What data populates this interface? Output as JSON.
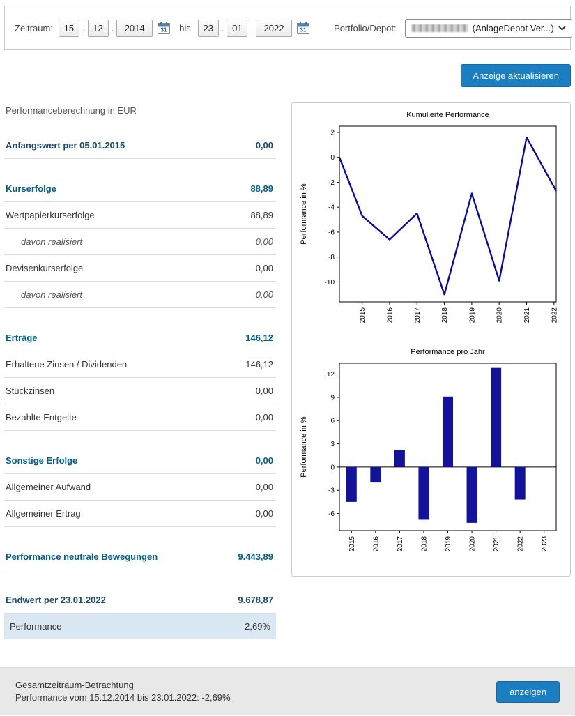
{
  "colors": {
    "accent_blue": "#1a7ec1",
    "section_blue": "#00618f",
    "total_blue": "#1b4a6e",
    "line_color": "#0b0b9d",
    "bar_color": "#12129a",
    "highlight_bg": "#d9e8f2"
  },
  "topbar": {
    "zeitraum_label": "Zeitraum:",
    "from_day": "15",
    "from_month": "12",
    "from_year": "2014",
    "bis_label": "bis",
    "to_day": "23",
    "to_month": "01",
    "to_year": "2022",
    "portfolio_label": "Portfolio/Depot:",
    "portfolio_value": "(AnlageDepot Ver...)"
  },
  "buttons": {
    "refresh": "Anzeige aktualisieren",
    "show": "anzeigen"
  },
  "statement": {
    "title": "Performanceberechnung in EUR",
    "rows": [
      {
        "type": "total",
        "label": "Anfangswert per 05.01.2015",
        "value": "0,00"
      },
      {
        "type": "section",
        "label": "Kurserfolge",
        "value": "88,89"
      },
      {
        "type": "item",
        "label": "Wertpapierkurserfolge",
        "value": "88,89"
      },
      {
        "type": "sub",
        "label": "davon realisiert",
        "value": "0,00"
      },
      {
        "type": "item",
        "label": "Devisenkurserfolge",
        "value": "0,00"
      },
      {
        "type": "sub",
        "label": "davon realisiert",
        "value": "0,00"
      },
      {
        "type": "section",
        "label": "Erträge",
        "value": "146,12"
      },
      {
        "type": "item",
        "label": "Erhaltene Zinsen / Dividenden",
        "value": "146,12"
      },
      {
        "type": "item",
        "label": "Stückzinsen",
        "value": "0,00"
      },
      {
        "type": "item",
        "label": "Bezahlte Entgelte",
        "value": "0,00"
      },
      {
        "type": "section",
        "label": "Sonstige Erfolge",
        "value": "0,00"
      },
      {
        "type": "item",
        "label": "Allgemeiner Aufwand",
        "value": "0,00"
      },
      {
        "type": "item",
        "label": "Allgemeiner Ertrag",
        "value": "0,00"
      },
      {
        "type": "section",
        "label": "Performance neutrale Bewegungen",
        "value": "9.443,89"
      },
      {
        "type": "total",
        "label": "Endwert per 23.01.2022",
        "value": "9.678,87"
      },
      {
        "type": "highlight",
        "label": "Performance",
        "value": "-2,69%"
      }
    ]
  },
  "footer": {
    "line1": "Gesamtzeitraum-Betrachtung",
    "line2": "Performance vom 15.12.2014 bis 23.01.2022: -2,69%"
  },
  "chart_data": [
    {
      "type": "line",
      "title": "Kumulierte Performance",
      "ylabel": "Performance in %",
      "x": [
        2014.17,
        2015,
        2016,
        2017,
        2018,
        2019,
        2020,
        2021,
        2022.08
      ],
      "y": [
        0,
        -4.7,
        -6.6,
        -4.5,
        -11.0,
        -2.9,
        -9.9,
        1.6,
        -2.69
      ],
      "xlim": [
        2014.17,
        2022.08
      ],
      "ylim": [
        -11.6,
        2.5
      ],
      "yticks": [
        2,
        0,
        -2,
        -4,
        -6,
        -8,
        -10
      ],
      "xticks": [
        2015,
        2016,
        2017,
        2018,
        2019,
        2020,
        2021,
        2022
      ],
      "grid": false,
      "legend": "none"
    },
    {
      "type": "bar",
      "title": "Performance pro Jahr",
      "ylabel": "Performance in %",
      "categories": [
        "2015",
        "2016",
        "2017",
        "2018",
        "2019",
        "2020",
        "2021",
        "2022",
        "2023"
      ],
      "values": [
        -4.5,
        -2.0,
        2.2,
        -6.8,
        9.1,
        -7.2,
        12.8,
        -4.2,
        null
      ],
      "ylim": [
        -8.2,
        13.4
      ],
      "yticks": [
        12,
        9,
        6,
        3,
        0,
        -3,
        -6
      ],
      "grid": false,
      "legend": "none"
    }
  ]
}
